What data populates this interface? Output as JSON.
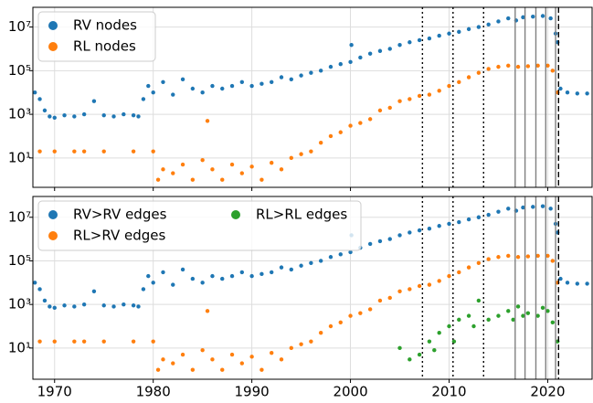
{
  "chart_data": [
    {
      "type": "scatter",
      "xlim": [
        1967.8,
        2024.5
      ],
      "xticks": [
        1970,
        1980,
        1990,
        2000,
        2010,
        2020
      ],
      "xtick_labels": false,
      "log_y": true,
      "ylim": [
        0.45,
        80000000
      ],
      "yticks": [
        {
          "value": 10,
          "label": "10¹"
        },
        {
          "value": 1000,
          "label": "10³"
        },
        {
          "value": 100000,
          "label": "10⁵"
        },
        {
          "value": 10000000,
          "label": "10⁷"
        }
      ],
      "grid": true,
      "legend": "upper left",
      "legend_columns": 1,
      "vlines": [
        {
          "x": 2007.3,
          "style": "dotted"
        },
        {
          "x": 2010.4,
          "style": "dotted"
        },
        {
          "x": 2013.5,
          "style": "dotted"
        },
        {
          "x": 2016.7,
          "style": "solid"
        },
        {
          "x": 2017.7,
          "style": "solid"
        },
        {
          "x": 2018.8,
          "style": "solid"
        },
        {
          "x": 2019.8,
          "style": "solid"
        },
        {
          "x": 2020.8,
          "style": "solid"
        },
        {
          "x": 2021.1,
          "style": "dashed"
        }
      ],
      "series": [
        {
          "name": "RV nodes",
          "color": "#1f77b4",
          "x": [
            1968,
            1968.5,
            1969,
            1969.5,
            1970,
            1971,
            1972,
            1973,
            1974,
            1975,
            1976,
            1977,
            1978,
            1978.5,
            1979,
            1979.5,
            1980,
            1981,
            1982,
            1983,
            1984,
            1985,
            1986,
            1987,
            1988,
            1989,
            1990,
            1991,
            1992,
            1993,
            1994,
            1995,
            1996,
            1997,
            1998,
            1999,
            2000,
            2000.1,
            2001,
            2002,
            2003,
            2004,
            2005,
            2006,
            2007,
            2008,
            2009,
            2010,
            2011,
            2012,
            2013,
            2014,
            2015,
            2016,
            2016.8,
            2017.5,
            2018.5,
            2019.5,
            2020.3,
            2020.8,
            2021,
            2021.3,
            2022,
            2023,
            2024
          ],
          "values": [
            10000,
            5000,
            1500,
            800,
            700,
            900,
            800,
            1000,
            4000,
            900,
            800,
            1000,
            900,
            800,
            5000,
            20000,
            10000,
            30000,
            8000,
            40000,
            15000,
            10000,
            20000,
            15000,
            20000,
            30000,
            20000,
            25000,
            30000,
            50000,
            40000,
            60000,
            80000,
            100000,
            150000,
            200000,
            250000,
            1500000,
            400000,
            600000,
            800000,
            1000000,
            1500000,
            2000000,
            2500000,
            3000000,
            4000000,
            5000000,
            6000000,
            8000000,
            10000000,
            13000000,
            18000000,
            25000000,
            20000000,
            28000000,
            30000000,
            32000000,
            25000000,
            5000000,
            2000000,
            15000,
            10000,
            9000,
            9000
          ]
        },
        {
          "name": "RL nodes",
          "color": "#ff7f0e",
          "x": [
            1968.5,
            1970,
            1972,
            1973,
            1975,
            1978,
            1980,
            1980.5,
            1981,
            1982,
            1983,
            1984,
            1985,
            1985.5,
            1986,
            1987,
            1988,
            1989,
            1990,
            1991,
            1992,
            1993,
            1994,
            1995,
            1996,
            1997,
            1998,
            1999,
            2000,
            2001,
            2002,
            2003,
            2004,
            2005,
            2006,
            2007,
            2008,
            2009,
            2010,
            2011,
            2012,
            2013,
            2014,
            2015,
            2016,
            2017,
            2018,
            2019,
            2020,
            2020.5,
            2021
          ],
          "values": [
            20,
            20,
            20,
            20,
            20,
            20,
            20,
            1,
            3,
            2,
            5,
            1,
            8,
            500,
            3,
            1,
            5,
            2,
            4,
            1,
            6,
            3,
            10,
            15,
            20,
            50,
            100,
            150,
            300,
            400,
            600,
            1500,
            2000,
            4000,
            5000,
            7000,
            8000,
            12000,
            20000,
            30000,
            50000,
            80000,
            120000,
            150000,
            170000,
            150000,
            160000,
            170000,
            170000,
            100000,
            10000
          ]
        }
      ]
    },
    {
      "type": "scatter",
      "xlim": [
        1967.8,
        2024.5
      ],
      "xticks": [
        1970,
        1980,
        1990,
        2000,
        2010,
        2020
      ],
      "xtick_labels": true,
      "log_y": true,
      "ylim": [
        0.37,
        90000000
      ],
      "yticks": [
        {
          "value": 10,
          "label": "10¹"
        },
        {
          "value": 1000,
          "label": "10³"
        },
        {
          "value": 100000,
          "label": "10⁵"
        },
        {
          "value": 10000000,
          "label": "10⁷"
        }
      ],
      "grid": true,
      "legend": "upper left",
      "legend_columns": 2,
      "vlines": [
        {
          "x": 2007.3,
          "style": "dotted"
        },
        {
          "x": 2010.4,
          "style": "dotted"
        },
        {
          "x": 2013.5,
          "style": "dotted"
        },
        {
          "x": 2016.7,
          "style": "solid"
        },
        {
          "x": 2017.7,
          "style": "solid"
        },
        {
          "x": 2018.8,
          "style": "solid"
        },
        {
          "x": 2019.8,
          "style": "solid"
        },
        {
          "x": 2020.8,
          "style": "solid"
        },
        {
          "x": 2021.1,
          "style": "dashed"
        }
      ],
      "series": [
        {
          "name": "RV>RV edges",
          "color": "#1f77b4",
          "x": [
            1968,
            1968.5,
            1969,
            1969.5,
            1970,
            1971,
            1972,
            1973,
            1974,
            1975,
            1976,
            1977,
            1978,
            1978.5,
            1979,
            1979.5,
            1980,
            1981,
            1982,
            1983,
            1984,
            1985,
            1986,
            1987,
            1988,
            1989,
            1990,
            1991,
            1992,
            1993,
            1994,
            1995,
            1996,
            1997,
            1998,
            1999,
            2000,
            2000.1,
            2001,
            2002,
            2003,
            2004,
            2005,
            2006,
            2007,
            2008,
            2009,
            2010,
            2011,
            2012,
            2013,
            2014,
            2015,
            2016,
            2016.8,
            2017.5,
            2018.5,
            2019.5,
            2020.3,
            2020.8,
            2021,
            2021.3,
            2022,
            2023,
            2024
          ],
          "values": [
            10000,
            5000,
            1500,
            800,
            700,
            900,
            800,
            1000,
            4000,
            900,
            800,
            1000,
            900,
            800,
            5000,
            20000,
            10000,
            30000,
            8000,
            40000,
            15000,
            10000,
            20000,
            15000,
            20000,
            30000,
            20000,
            25000,
            30000,
            50000,
            40000,
            60000,
            80000,
            100000,
            150000,
            200000,
            250000,
            1500000,
            400000,
            600000,
            800000,
            1000000,
            1500000,
            2000000,
            2500000,
            3000000,
            4000000,
            5000000,
            6000000,
            8000000,
            10000000,
            13000000,
            18000000,
            25000000,
            20000000,
            28000000,
            30000000,
            32000000,
            25000000,
            5000000,
            2000000,
            15000,
            10000,
            9000,
            9000
          ]
        },
        {
          "name": "RL>RV edges",
          "color": "#ff7f0e",
          "x": [
            1968.5,
            1970,
            1972,
            1973,
            1975,
            1978,
            1980,
            1980.5,
            1981,
            1982,
            1983,
            1984,
            1985,
            1985.5,
            1986,
            1987,
            1988,
            1989,
            1990,
            1991,
            1992,
            1993,
            1994,
            1995,
            1996,
            1997,
            1998,
            1999,
            2000,
            2001,
            2002,
            2003,
            2004,
            2005,
            2006,
            2007,
            2008,
            2009,
            2010,
            2011,
            2012,
            2013,
            2014,
            2015,
            2016,
            2017,
            2018,
            2019,
            2020,
            2020.5,
            2021
          ],
          "values": [
            20,
            20,
            20,
            20,
            20,
            20,
            20,
            1,
            3,
            2,
            5,
            1,
            8,
            500,
            3,
            1,
            5,
            2,
            4,
            1,
            6,
            3,
            10,
            15,
            20,
            50,
            100,
            150,
            300,
            400,
            600,
            1500,
            2000,
            4000,
            5000,
            7000,
            8000,
            12000,
            20000,
            30000,
            50000,
            80000,
            120000,
            150000,
            170000,
            150000,
            160000,
            170000,
            170000,
            100000,
            10000
          ]
        },
        {
          "name": "RL>RL edges",
          "color": "#2ca02c",
          "x": [
            2005,
            2006,
            2007,
            2008,
            2008.5,
            2009,
            2010,
            2010.5,
            2011,
            2012,
            2012.5,
            2013,
            2014,
            2015,
            2016,
            2016.5,
            2017,
            2017.5,
            2018,
            2019,
            2019.5,
            2020,
            2020.5,
            2021
          ],
          "values": [
            10,
            3,
            5,
            20,
            8,
            50,
            100,
            20,
            200,
            300,
            100,
            1500,
            200,
            300,
            500,
            200,
            800,
            300,
            400,
            300,
            700,
            500,
            150,
            20
          ]
        }
      ]
    }
  ]
}
